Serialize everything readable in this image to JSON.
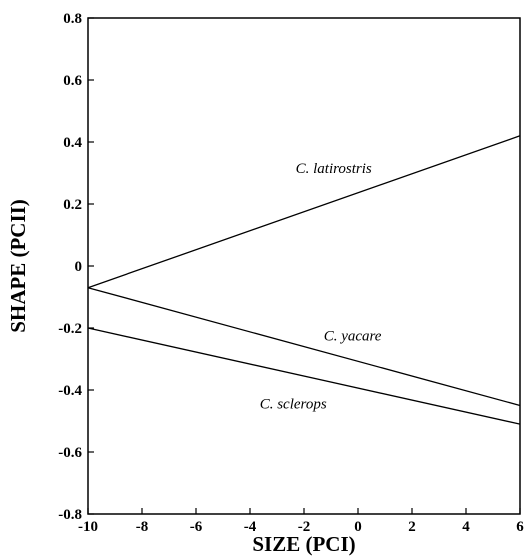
{
  "chart_data": {
    "type": "line",
    "title": "",
    "xlabel": "SIZE (PCI)",
    "ylabel": "SHAPE (PCII)",
    "xlim": [
      -10,
      6
    ],
    "ylim": [
      -0.8,
      0.8
    ],
    "x_ticks": [
      -10,
      -8,
      -6,
      -4,
      -2,
      0,
      2,
      4,
      6
    ],
    "y_ticks": [
      -0.8,
      -0.6,
      -0.4,
      -0.2,
      0,
      0.2,
      0.4,
      0.6,
      0.8
    ],
    "x_tick_labels": [
      "-10",
      "-8",
      "-6",
      "-4",
      "-2",
      "0",
      "2",
      "4",
      "6"
    ],
    "y_tick_labels": [
      "-0.8",
      "-0.6",
      "-0.4",
      "-0.2",
      "0",
      "0.2",
      "0.4",
      "0.6",
      "0.8"
    ],
    "grid": false,
    "legend": "none",
    "series": [
      {
        "name": "C. latirostris",
        "x": [
          -10,
          6
        ],
        "y": [
          -0.07,
          0.42
        ],
        "label_at": [
          -0.9,
          0.3
        ]
      },
      {
        "name": "C. yacare",
        "x": [
          -10,
          6
        ],
        "y": [
          -0.07,
          -0.45
        ],
        "label_at": [
          -0.2,
          -0.24
        ]
      },
      {
        "name": "C. sclerops",
        "x": [
          -10,
          6
        ],
        "y": [
          -0.2,
          -0.51
        ],
        "label_at": [
          -2.4,
          -0.46
        ]
      }
    ]
  }
}
